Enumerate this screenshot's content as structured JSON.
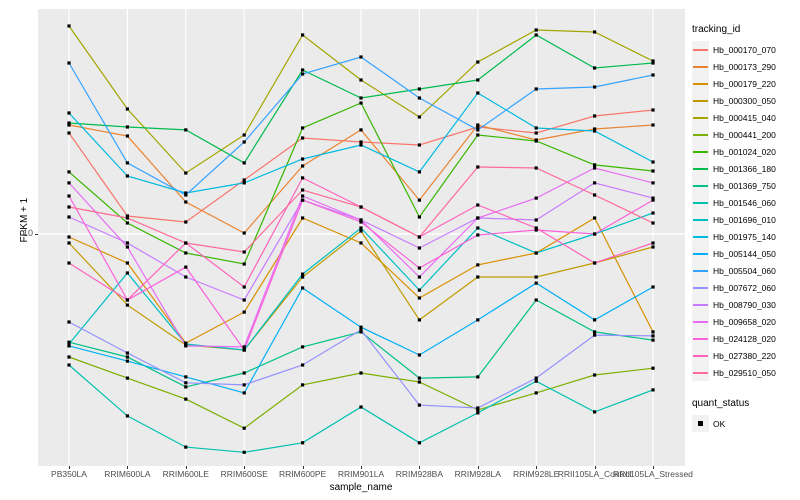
{
  "axes": {
    "y_title": "FPKM + 1",
    "x_title": "sample_name",
    "y_tick": "10"
  },
  "legend": {
    "title": "tracking_id"
  },
  "legend2": {
    "title": "quant_status",
    "items": [
      {
        "label": "OK"
      }
    ]
  },
  "colors": {
    "panel_bg": "#EBEBEB",
    "grid": "#FFFFFF",
    "tick_text": "#4D4D4D",
    "marker": "#000000"
  },
  "chart_data": {
    "type": "line",
    "title": "",
    "xlabel": "sample_name",
    "ylabel": "FPKM + 1",
    "y_scale": "log10",
    "y_tick_labels": [
      "10"
    ],
    "grid": "on",
    "legend_position": "right",
    "legend_title": "tracking_id",
    "quant_legend": {
      "title": "quant_status",
      "items": [
        "OK"
      ]
    },
    "x_categories": [
      "PB350LA",
      "RRIM600LA",
      "RRIM600LE",
      "RRIM600SE",
      "RRIM600PE",
      "RRIM901LA",
      "RRIM928BA",
      "RRIM928LA",
      "RRIM928LE",
      "RRII105LA_Control",
      "RRII105LA_Stressed"
    ],
    "series": [
      {
        "name": "Hb_000170_070",
        "color": "#F8766D",
        "values": [
          20.24,
          11.34,
          10.87,
          14.58,
          19.54,
          19.0,
          18.61,
          21.1,
          20.24,
          22.78,
          23.75
        ]
      },
      {
        "name": "Hb_000173_290",
        "color": "#EA8331",
        "values": [
          21.4,
          19.82,
          12.5,
          10.07,
          16.07,
          20.67,
          12.67,
          21.4,
          19.27,
          20.81,
          21.4
        ]
      },
      {
        "name": "Hb_000179_220",
        "color": "#D89000",
        "values": [
          9.79,
          8.17,
          4.67,
          5.8,
          11.18,
          9.39,
          6.4,
          8.06,
          8.76,
          11.18,
          5.05
        ]
      },
      {
        "name": "Hb_000300_050",
        "color": "#C09B00",
        "values": [
          9.39,
          6.09,
          4.61,
          4.45,
          7.41,
          10.21,
          5.49,
          7.41,
          7.41,
          8.17,
          9.13
        ]
      },
      {
        "name": "Hb_000415_040",
        "color": "#A3A500",
        "values": [
          42.69,
          23.92,
          15.31,
          19.95,
          40.09,
          29.29,
          22.62,
          33.21,
          41.52,
          40.94,
          33.44
        ]
      },
      {
        "name": "Hb_000441_200",
        "color": "#7CAE00",
        "values": [
          4.24,
          3.66,
          3.16,
          2.58,
          3.49,
          3.79,
          3.56,
          2.93,
          3.3,
          3.74,
          3.92
        ]
      },
      {
        "name": "Hb_001024_020",
        "color": "#39B600",
        "values": [
          15.42,
          10.8,
          8.76,
          8.11,
          20.95,
          24.95,
          11.26,
          19.95,
          19.14,
          16.19,
          15.52
        ]
      },
      {
        "name": "Hb_001366_180",
        "color": "#00BB4E",
        "values": [
          21.7,
          21.1,
          20.67,
          16.42,
          31.41,
          25.83,
          27.5,
          29.29,
          40.09,
          31.85,
          32.98
        ]
      },
      {
        "name": "Hb_001369_750",
        "color": "#00C087",
        "values": [
          4.7,
          4.24,
          3.44,
          3.79,
          4.55,
          5.05,
          3.66,
          3.69,
          6.31,
          5.05,
          4.77
        ]
      },
      {
        "name": "Hb_001546_060",
        "color": "#00C0AF",
        "values": [
          4.01,
          2.81,
          2.26,
          2.18,
          2.33,
          2.99,
          2.33,
          2.87,
          3.58,
          2.89,
          3.37
        ]
      },
      {
        "name": "Hb_001696_010",
        "color": "#00BFC4",
        "values": [
          4.64,
          7.62,
          4.64,
          4.45,
          7.56,
          10.43,
          6.76,
          10.43,
          8.76,
          10.0,
          11.58
        ]
      },
      {
        "name": "Hb_001975_140",
        "color": "#00BAE0",
        "values": [
          23.26,
          14.99,
          13.31,
          14.28,
          16.88,
          18.61,
          15.42,
          26.75,
          20.95,
          20.52,
          16.53
        ]
      },
      {
        "name": "Hb_005144_050",
        "color": "#00B0F6",
        "values": [
          4.58,
          4.12,
          3.69,
          3.3,
          6.86,
          5.22,
          4.3,
          5.49,
          7.1,
          5.49,
          6.91
        ]
      },
      {
        "name": "Hb_005504_060",
        "color": "#35A2FF",
        "values": [
          32.98,
          16.42,
          13.13,
          19.0,
          30.54,
          34.39,
          25.83,
          20.67,
          27.5,
          27.89,
          30.33
        ]
      },
      {
        "name": "Hb_007672_060",
        "color": "#9590FF",
        "values": [
          5.41,
          4.36,
          3.54,
          3.49,
          4.01,
          5.12,
          3.03,
          2.97,
          3.66,
          4.94,
          4.91
        ]
      },
      {
        "name": "Hb_008790_030",
        "color": "#C77CFF",
        "values": [
          11.26,
          9.39,
          7.41,
          6.31,
          12.67,
          11.03,
          9.07,
          11.18,
          11.03,
          14.28,
          12.85
        ]
      },
      {
        "name": "Hb_009658_020",
        "color": "#E76BF3",
        "values": [
          14.28,
          9.13,
          4.58,
          4.55,
          13.04,
          11.03,
          7.41,
          11.18,
          12.85,
          15.85,
          14.28
        ]
      },
      {
        "name": "Hb_024128_020",
        "color": "#FA62DB",
        "values": [
          13.04,
          6.31,
          7.94,
          4.45,
          12.67,
          10.87,
          7.89,
          9.93,
          10.28,
          10.0,
          12.67
        ]
      },
      {
        "name": "Hb_027380_220",
        "color": "#FF62BC",
        "values": [
          8.17,
          6.31,
          9.39,
          6.91,
          14.79,
          12.07,
          9.79,
          12.24,
          10.43,
          8.17,
          9.39
        ]
      },
      {
        "name": "Hb_029510_050",
        "color": "#FF6A98",
        "values": [
          12.07,
          11.18,
          9.39,
          8.82,
          13.59,
          12.07,
          9.79,
          15.96,
          15.85,
          13.13,
          10.8
        ]
      }
    ]
  }
}
